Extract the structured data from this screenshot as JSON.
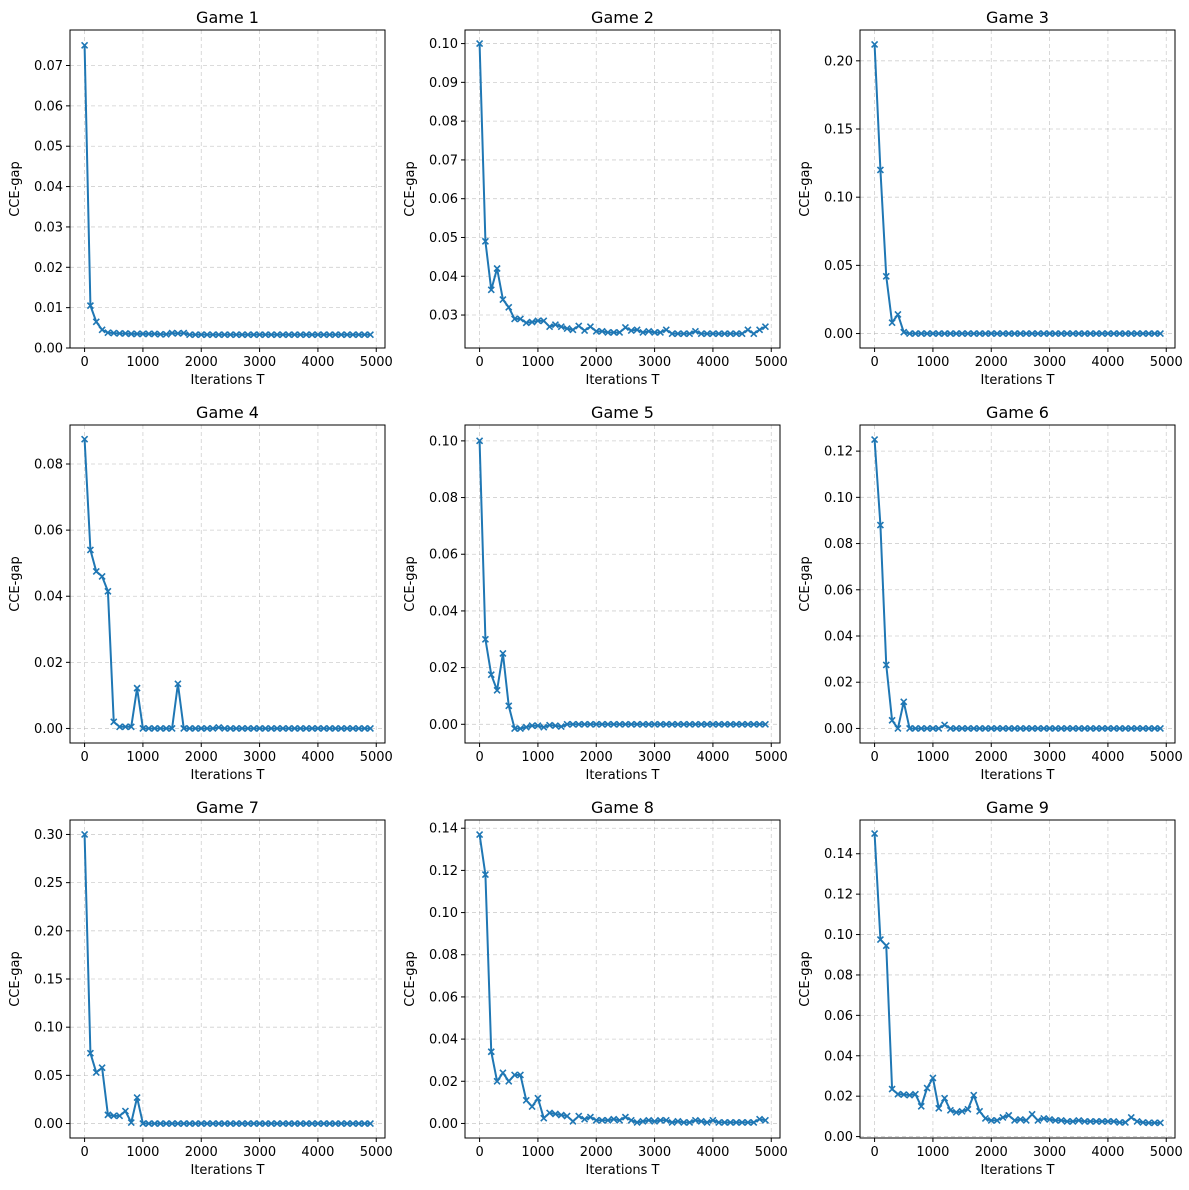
{
  "chart_data": [
    {
      "type": "line",
      "title": "Game 1",
      "xlabel": "Iterations T",
      "ylabel": "CCE-gap",
      "xlim": [
        -250,
        5150
      ],
      "ylim": [
        0,
        0.0788
      ],
      "xticks": [
        0,
        1000,
        2000,
        3000,
        4000,
        5000
      ],
      "yticks": [
        0,
        0.01,
        0.02,
        0.03,
        0.04,
        0.05,
        0.06,
        0.07
      ],
      "ytick_labels": [
        "0.00",
        "0.01",
        "0.02",
        "0.03",
        "0.04",
        "0.05",
        "0.06",
        "0.07"
      ],
      "x": [
        0,
        100,
        200,
        300,
        400,
        500,
        600,
        700,
        800,
        900,
        1000,
        1100,
        1200,
        1300,
        1400,
        1500,
        1600,
        1700,
        1800,
        1900,
        2000,
        2100,
        2200,
        2300,
        2400,
        2500,
        2600,
        2700,
        2800,
        2900,
        3000,
        3100,
        3200,
        3300,
        3400,
        3500,
        3600,
        3700,
        3800,
        3900,
        4000,
        4100,
        4200,
        4300,
        4400,
        4500,
        4600,
        4700,
        4800,
        4900
      ],
      "y": [
        0.075,
        0.0105,
        0.0065,
        0.0045,
        0.0038,
        0.0037,
        0.0036,
        0.0036,
        0.0035,
        0.0035,
        0.0035,
        0.0035,
        0.0035,
        0.0034,
        0.0034,
        0.0037,
        0.0036,
        0.0037,
        0.0033,
        0.0033,
        0.0033,
        0.0033,
        0.0033,
        0.0033,
        0.0033,
        0.0033,
        0.0033,
        0.0033,
        0.0033,
        0.0033,
        0.0033,
        0.0033,
        0.0033,
        0.0033,
        0.0033,
        0.0033,
        0.0033,
        0.0033,
        0.0033,
        0.0033,
        0.0033,
        0.0033,
        0.0033,
        0.0033,
        0.0033,
        0.0033,
        0.0033,
        0.0033,
        0.0033,
        0.0033
      ]
    },
    {
      "type": "line",
      "title": "Game 2",
      "xlabel": "Iterations T",
      "ylabel": "CCE-gap",
      "xlim": [
        -250,
        5150
      ],
      "ylim": [
        0.0215,
        0.1035
      ],
      "xticks": [
        0,
        1000,
        2000,
        3000,
        4000,
        5000
      ],
      "yticks": [
        0.03,
        0.04,
        0.05,
        0.06,
        0.07,
        0.08,
        0.09,
        0.1
      ],
      "ytick_labels": [
        "0.03",
        "0.04",
        "0.05",
        "0.06",
        "0.07",
        "0.08",
        "0.09",
        "0.10"
      ],
      "x": [
        0,
        100,
        200,
        300,
        400,
        500,
        600,
        700,
        800,
        900,
        1000,
        1100,
        1200,
        1300,
        1400,
        1500,
        1600,
        1700,
        1800,
        1900,
        2000,
        2100,
        2200,
        2300,
        2400,
        2500,
        2600,
        2700,
        2800,
        2900,
        3000,
        3100,
        3200,
        3300,
        3400,
        3500,
        3600,
        3700,
        3800,
        3900,
        4000,
        4100,
        4200,
        4300,
        4400,
        4500,
        4600,
        4700,
        4800,
        4900
      ],
      "y": [
        0.1,
        0.049,
        0.0365,
        0.042,
        0.034,
        0.032,
        0.029,
        0.029,
        0.028,
        0.0282,
        0.0285,
        0.0285,
        0.027,
        0.0275,
        0.027,
        0.0265,
        0.0262,
        0.0272,
        0.026,
        0.027,
        0.0258,
        0.0258,
        0.0255,
        0.0255,
        0.0255,
        0.0268,
        0.026,
        0.0262,
        0.0255,
        0.0258,
        0.0255,
        0.0255,
        0.0262,
        0.0252,
        0.0252,
        0.0252,
        0.0252,
        0.0258,
        0.0252,
        0.0252,
        0.0252,
        0.0252,
        0.0252,
        0.0252,
        0.0252,
        0.0252,
        0.0262,
        0.0252,
        0.0262,
        0.027
      ]
    },
    {
      "type": "line",
      "title": "Game 3",
      "xlabel": "Iterations T",
      "ylabel": "CCE-gap",
      "xlim": [
        -250,
        5150
      ],
      "ylim": [
        -0.0106,
        0.2226
      ],
      "xticks": [
        0,
        1000,
        2000,
        3000,
        4000,
        5000
      ],
      "yticks": [
        0,
        0.05,
        0.1,
        0.15,
        0.2
      ],
      "ytick_labels": [
        "0.00",
        "0.05",
        "0.10",
        "0.15",
        "0.20"
      ],
      "x": [
        0,
        100,
        200,
        300,
        400,
        500,
        600,
        700,
        800,
        900,
        1000,
        1100,
        1200,
        1300,
        1400,
        1500,
        1600,
        1700,
        1800,
        1900,
        2000,
        2100,
        2200,
        2300,
        2400,
        2500,
        2600,
        2700,
        2800,
        2900,
        3000,
        3100,
        3200,
        3300,
        3400,
        3500,
        3600,
        3700,
        3800,
        3900,
        4000,
        4100,
        4200,
        4300,
        4400,
        4500,
        4600,
        4700,
        4800,
        4900
      ],
      "y": [
        0.212,
        0.12,
        0.042,
        0.008,
        0.014,
        0.001,
        0,
        0,
        0,
        0,
        0,
        0,
        0,
        0,
        0,
        0,
        0,
        0,
        0,
        0,
        0,
        0,
        0,
        0,
        0,
        0,
        0,
        0,
        0,
        0,
        0,
        0,
        0,
        0,
        0,
        0,
        0,
        0,
        0,
        0,
        0,
        0,
        0,
        0,
        0,
        0,
        0,
        0,
        0,
        0
      ]
    },
    {
      "type": "line",
      "title": "Game 4",
      "xlabel": "Iterations T",
      "ylabel": "CCE-gap",
      "xlim": [
        -250,
        5150
      ],
      "ylim": [
        -0.0044,
        0.0918
      ],
      "xticks": [
        0,
        1000,
        2000,
        3000,
        4000,
        5000
      ],
      "yticks": [
        0,
        0.02,
        0.04,
        0.06,
        0.08
      ],
      "ytick_labels": [
        "0.00",
        "0.02",
        "0.04",
        "0.06",
        "0.08"
      ],
      "x": [
        0,
        100,
        200,
        300,
        400,
        500,
        600,
        700,
        800,
        900,
        1000,
        1100,
        1200,
        1300,
        1400,
        1500,
        1600,
        1700,
        1800,
        1900,
        2000,
        2100,
        2200,
        2300,
        2400,
        2500,
        2600,
        2700,
        2800,
        2900,
        3000,
        3100,
        3200,
        3300,
        3400,
        3500,
        3600,
        3700,
        3800,
        3900,
        4000,
        4100,
        4200,
        4300,
        4400,
        4500,
        4600,
        4700,
        4800,
        4900
      ],
      "y": [
        0.0875,
        0.054,
        0.0475,
        0.046,
        0.0415,
        0.002,
        0.0005,
        0.0005,
        0.0005,
        0.0122,
        0,
        0,
        0,
        0,
        0,
        0,
        0.0135,
        0,
        0,
        0,
        0,
        0,
        0,
        0.0003,
        0,
        0,
        0,
        0,
        0,
        0,
        0,
        0,
        0,
        0,
        0,
        0,
        0,
        0,
        0,
        0,
        0,
        0,
        0,
        0,
        0,
        0,
        0,
        0,
        0,
        0
      ]
    },
    {
      "type": "line",
      "title": "Game 5",
      "xlabel": "Iterations T",
      "ylabel": "CCE-gap",
      "xlim": [
        -250,
        5150
      ],
      "ylim": [
        -0.0066,
        0.1056
      ],
      "xticks": [
        0,
        1000,
        2000,
        3000,
        4000,
        5000
      ],
      "yticks": [
        0,
        0.02,
        0.04,
        0.06,
        0.08,
        0.1
      ],
      "ytick_labels": [
        "0.00",
        "0.02",
        "0.04",
        "0.06",
        "0.08",
        "0.10"
      ],
      "x": [
        0,
        100,
        200,
        300,
        400,
        500,
        600,
        700,
        800,
        900,
        1000,
        1100,
        1200,
        1300,
        1400,
        1500,
        1600,
        1700,
        1800,
        1900,
        2000,
        2100,
        2200,
        2300,
        2400,
        2500,
        2600,
        2700,
        2800,
        2900,
        3000,
        3100,
        3200,
        3300,
        3400,
        3500,
        3600,
        3700,
        3800,
        3900,
        4000,
        4100,
        4200,
        4300,
        4400,
        4500,
        4600,
        4700,
        4800,
        4900
      ],
      "y": [
        0.1,
        0.03,
        0.0175,
        0.012,
        0.025,
        0.0065,
        -0.0015,
        -0.0015,
        -0.001,
        -0.0005,
        -0.0005,
        -0.001,
        -0.0003,
        -0.0005,
        -0.0008,
        0,
        0,
        0,
        0,
        0,
        0,
        0,
        0,
        0,
        0,
        0,
        0,
        0,
        0,
        0,
        0,
        0,
        0,
        0,
        0,
        0,
        0,
        0,
        0,
        0,
        0,
        0,
        0,
        0,
        0,
        0,
        0,
        0,
        0,
        0
      ]
    },
    {
      "type": "line",
      "title": "Game 6",
      "xlabel": "Iterations T",
      "ylabel": "CCE-gap",
      "xlim": [
        -250,
        5150
      ],
      "ylim": [
        -0.0063,
        0.1313
      ],
      "xticks": [
        0,
        1000,
        2000,
        3000,
        4000,
        5000
      ],
      "yticks": [
        0,
        0.02,
        0.04,
        0.06,
        0.08,
        0.1,
        0.12
      ],
      "ytick_labels": [
        "0.00",
        "0.02",
        "0.04",
        "0.06",
        "0.08",
        "0.10",
        "0.12"
      ],
      "x": [
        0,
        100,
        200,
        300,
        400,
        500,
        600,
        700,
        800,
        900,
        1000,
        1100,
        1200,
        1300,
        1400,
        1500,
        1600,
        1700,
        1800,
        1900,
        2000,
        2100,
        2200,
        2300,
        2400,
        2500,
        2600,
        2700,
        2800,
        2900,
        3000,
        3100,
        3200,
        3300,
        3400,
        3500,
        3600,
        3700,
        3800,
        3900,
        4000,
        4100,
        4200,
        4300,
        4400,
        4500,
        4600,
        4700,
        4800,
        4900
      ],
      "y": [
        0.125,
        0.088,
        0.0275,
        0.0035,
        0,
        0.0115,
        0,
        0,
        0,
        0,
        0,
        0,
        0.0015,
        0,
        0,
        0,
        0,
        0,
        0,
        0,
        0,
        0,
        0,
        0,
        0,
        0,
        0,
        0,
        0,
        0,
        0,
        0,
        0,
        0,
        0,
        0,
        0,
        0,
        0,
        0,
        0,
        0,
        0,
        0,
        0,
        0,
        0,
        0,
        0,
        0
      ]
    },
    {
      "type": "line",
      "title": "Game 7",
      "xlabel": "Iterations T",
      "ylabel": "CCE-gap",
      "xlim": [
        -250,
        5150
      ],
      "ylim": [
        -0.015,
        0.315
      ],
      "xticks": [
        0,
        1000,
        2000,
        3000,
        4000,
        5000
      ],
      "yticks": [
        0,
        0.05,
        0.1,
        0.15,
        0.2,
        0.25,
        0.3
      ],
      "ytick_labels": [
        "0.00",
        "0.05",
        "0.10",
        "0.15",
        "0.20",
        "0.25",
        "0.30"
      ],
      "x": [
        0,
        100,
        200,
        300,
        400,
        500,
        600,
        700,
        800,
        900,
        1000,
        1100,
        1200,
        1300,
        1400,
        1500,
        1600,
        1700,
        1800,
        1900,
        2000,
        2100,
        2200,
        2300,
        2400,
        2500,
        2600,
        2700,
        2800,
        2900,
        3000,
        3100,
        3200,
        3300,
        3400,
        3500,
        3600,
        3700,
        3800,
        3900,
        4000,
        4100,
        4200,
        4300,
        4400,
        4500,
        4600,
        4700,
        4800,
        4900
      ],
      "y": [
        0.3,
        0.073,
        0.053,
        0.058,
        0.009,
        0.008,
        0.008,
        0.013,
        0.001,
        0.027,
        0,
        0,
        0,
        0,
        0,
        0,
        0,
        0,
        0,
        0,
        0,
        0,
        0,
        0,
        0,
        0,
        0,
        0,
        0,
        0,
        0,
        0,
        0,
        0,
        0,
        0,
        0,
        0,
        0,
        0,
        0,
        0,
        0,
        0,
        0,
        0,
        0,
        0,
        0,
        0
      ]
    },
    {
      "type": "line",
      "title": "Game 8",
      "xlabel": "Iterations T",
      "ylabel": "CCE-gap",
      "xlim": [
        -250,
        5150
      ],
      "ylim": [
        -0.0069,
        0.1439
      ],
      "xticks": [
        0,
        1000,
        2000,
        3000,
        4000,
        5000
      ],
      "yticks": [
        0,
        0.02,
        0.04,
        0.06,
        0.08,
        0.1,
        0.12,
        0.14
      ],
      "ytick_labels": [
        "0.00",
        "0.02",
        "0.04",
        "0.06",
        "0.08",
        "0.10",
        "0.12",
        "0.14"
      ],
      "x": [
        0,
        100,
        200,
        300,
        400,
        500,
        600,
        700,
        800,
        900,
        1000,
        1100,
        1200,
        1300,
        1400,
        1500,
        1600,
        1700,
        1800,
        1900,
        2000,
        2100,
        2200,
        2300,
        2400,
        2500,
        2600,
        2700,
        2800,
        2900,
        3000,
        3100,
        3200,
        3300,
        3400,
        3500,
        3600,
        3700,
        3800,
        3900,
        4000,
        4100,
        4200,
        4300,
        4400,
        4500,
        4600,
        4700,
        4800,
        4900
      ],
      "y": [
        0.137,
        0.118,
        0.034,
        0.02,
        0.024,
        0.02,
        0.023,
        0.023,
        0.011,
        0.008,
        0.012,
        0.0025,
        0.005,
        0.0045,
        0.004,
        0.0035,
        0.001,
        0.0035,
        0.002,
        0.003,
        0.0015,
        0.0015,
        0.0015,
        0.002,
        0.0015,
        0.003,
        0.0015,
        0.0005,
        0.001,
        0.0015,
        0.001,
        0.0015,
        0.0015,
        0.0005,
        0.001,
        0.0005,
        0.0005,
        0.0015,
        0.001,
        0.0005,
        0.0015,
        0.0005,
        0.0005,
        0.0005,
        0.0005,
        0.0005,
        0.0005,
        0.0005,
        0.002,
        0.0015
      ]
    },
    {
      "type": "line",
      "title": "Game 9",
      "xlabel": "Iterations T",
      "ylabel": "CCE-gap",
      "xlim": [
        -250,
        5150
      ],
      "ylim": [
        -0.0007,
        0.1567
      ],
      "xticks": [
        0,
        1000,
        2000,
        3000,
        4000,
        5000
      ],
      "yticks": [
        0,
        0.02,
        0.04,
        0.06,
        0.08,
        0.1,
        0.12,
        0.14
      ],
      "ytick_labels": [
        "0.00",
        "0.02",
        "0.04",
        "0.06",
        "0.08",
        "0.10",
        "0.12",
        "0.14"
      ],
      "x": [
        0,
        100,
        200,
        300,
        400,
        500,
        600,
        700,
        800,
        900,
        1000,
        1100,
        1200,
        1300,
        1400,
        1500,
        1600,
        1700,
        1800,
        1900,
        2000,
        2100,
        2200,
        2300,
        2400,
        2500,
        2600,
        2700,
        2800,
        2900,
        3000,
        3100,
        3200,
        3300,
        3400,
        3500,
        3600,
        3700,
        3800,
        3900,
        4000,
        4100,
        4200,
        4300,
        4400,
        4500,
        4600,
        4700,
        4800,
        4900
      ],
      "y": [
        0.15,
        0.0975,
        0.0945,
        0.0235,
        0.021,
        0.0208,
        0.0205,
        0.021,
        0.015,
        0.024,
        0.029,
        0.014,
        0.019,
        0.013,
        0.012,
        0.0125,
        0.0135,
        0.0205,
        0.0125,
        0.009,
        0.008,
        0.008,
        0.0095,
        0.0105,
        0.008,
        0.0085,
        0.008,
        0.011,
        0.008,
        0.009,
        0.0085,
        0.008,
        0.008,
        0.0075,
        0.0075,
        0.008,
        0.0075,
        0.0075,
        0.0075,
        0.0075,
        0.0075,
        0.0075,
        0.007,
        0.007,
        0.0095,
        0.0075,
        0.007,
        0.0068,
        0.0068,
        0.0068
      ]
    }
  ]
}
